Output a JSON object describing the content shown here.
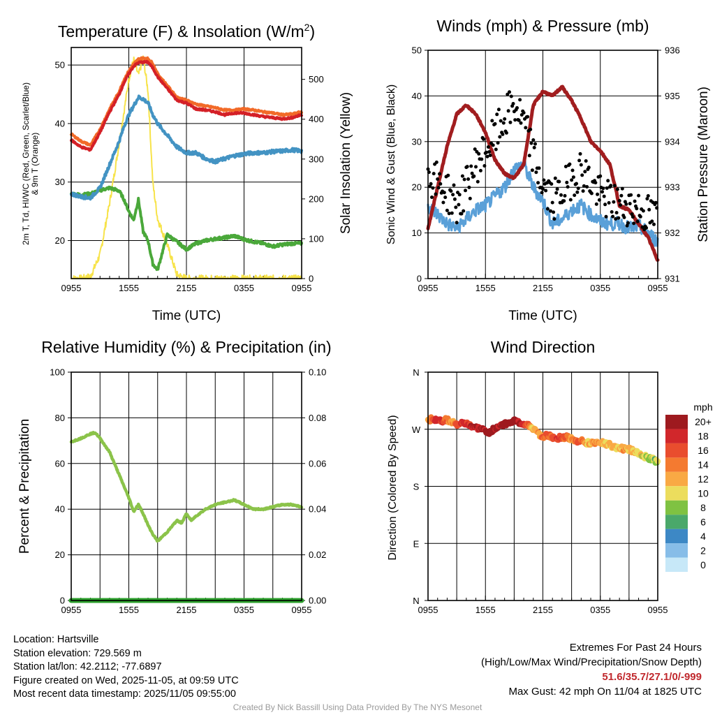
{
  "panels": [
    {
      "id": "temp",
      "title_main": "Temperature (F) & Insolation (W/m",
      "title_sup": "2",
      "title_end": ")",
      "xlabel": "Time (UTC)",
      "ylabel_left_lines": [
        "2m T, Td, HI/WC (Red, Green, Scarlet/Blue)",
        "& 9m T (Orange)"
      ],
      "ylabel_right": "Solar Insolation (Yellow)"
    },
    {
      "id": "wind",
      "title": "Winds (mph) & Pressure (mb)",
      "xlabel": "Time (UTC)",
      "ylabel_left": "Sonic Wind & Gust (Blue, Black)",
      "ylabel_right": "Station Pressure (Maroon)"
    },
    {
      "id": "rh",
      "title": "Relative Humidity (%) & Precipitation (in)",
      "ylabel_left": "Percent & Precipitation"
    },
    {
      "id": "dir",
      "title": "Wind Direction",
      "ylabel_left": "Direction (Colored By Speed)"
    }
  ],
  "colors": {
    "temp": "#d42027",
    "temp9m": "#f26a28",
    "windchill": "#4393c3",
    "dewpoint": "#4aa83a",
    "insolation": "#f7e34a",
    "wind": "#5aa0d8",
    "gust": "#000000",
    "pressure": "#a11d1f",
    "rh": "#8bc34a",
    "precip": "#2ca02c",
    "extremes": "#c0282d"
  },
  "colorbar": {
    "unit": "mph",
    "labels": [
      "20+",
      "18",
      "16",
      "14",
      "12",
      "10",
      "8",
      "6",
      "4",
      "2",
      "0"
    ],
    "colors": [
      "#9e1a1f",
      "#d1272b",
      "#e94d2e",
      "#f47a30",
      "#f9a944",
      "#ecdd5d",
      "#7fc242",
      "#4aa86a",
      "#3d88c5",
      "#87bde8",
      "#c7e8f8"
    ]
  },
  "info": {
    "location": "Location: Hartsville",
    "elevation": "Station elevation: 729.569 m",
    "latlon": "Station lat/lon: 42.2112; -77.6897",
    "created": "Figure created on Wed, 2025-11-05, at 09:59 UTC",
    "recent": "Most recent data timestamp: 2025/11/05 09:55:00",
    "extremes_title": "Extremes For Past 24 Hours",
    "extremes_fields": "(High/Low/Max Wind/Precipitation/Snow Depth)",
    "extremes_values": "51.6/35.7/27.1/0/-999",
    "max_gust": "Max Gust: 42 mph On 11/04 at 1825 UTC",
    "credit": "Created By Nick Bassill Using Data Provided By The NYS Mesonet"
  },
  "chart_data": [
    {
      "id": "temp",
      "type": "line",
      "x_ticks": [
        "0955",
        "1555",
        "2155",
        "0355",
        "0955"
      ],
      "x": [
        0,
        1,
        2,
        3,
        4,
        5,
        5.5,
        6,
        6.5,
        7,
        7.5,
        8,
        8.5,
        9,
        10,
        11,
        12,
        13,
        14,
        15,
        16,
        17,
        18,
        19,
        20,
        21,
        22,
        23,
        24
      ],
      "ylim": [
        13.5,
        53
      ],
      "y_ticks": [
        20,
        30,
        40,
        50
      ],
      "y2lim": [
        0,
        580
      ],
      "y2_ticks": [
        0,
        100,
        200,
        300,
        400,
        500
      ],
      "series": [
        {
          "name": "2m T",
          "color_key": "temp",
          "axis": "left",
          "values": [
            37.2,
            36,
            35.5,
            38.5,
            42,
            45,
            47,
            48.5,
            49.8,
            50.4,
            50.5,
            50.5,
            49.5,
            48,
            46,
            44,
            43.5,
            42.5,
            42.3,
            42,
            41.5,
            41.8,
            41.8,
            41.5,
            41.2,
            41,
            40.8,
            41,
            41.5
          ]
        },
        {
          "name": "9m T",
          "color_key": "temp9m",
          "axis": "left",
          "values": [
            38.2,
            37,
            36.3,
            39,
            42.5,
            45.5,
            47.5,
            49,
            50.2,
            51,
            51.2,
            51.1,
            50.3,
            48.5,
            46.5,
            44.5,
            44,
            43.3,
            43,
            42.7,
            42.3,
            42.3,
            42.5,
            42.3,
            42,
            41.8,
            41.5,
            41.6,
            42
          ]
        },
        {
          "name": "HI/WC",
          "color_key": "windchill",
          "axis": "left",
          "values": [
            28,
            27.5,
            27.3,
            29,
            33,
            37,
            39.5,
            41.5,
            43,
            44.5,
            44.2,
            43.5,
            41.5,
            40,
            38,
            36,
            35,
            35,
            34,
            33.5,
            34,
            34.5,
            34.8,
            35,
            35,
            35.2,
            35.3,
            35.5,
            35.3
          ]
        },
        {
          "name": "Td",
          "color_key": "dewpoint",
          "axis": "left",
          "values": [
            28,
            27.8,
            28,
            28.6,
            29,
            28.5,
            27,
            25,
            23.5,
            27,
            21.5,
            20,
            16,
            15,
            21,
            19.8,
            18.5,
            19.5,
            20,
            20.3,
            20.5,
            20.8,
            20.2,
            19.8,
            19.5,
            19,
            19.3,
            19.5,
            19.5
          ]
        },
        {
          "name": "Insolation",
          "color_key": "insolation",
          "axis": "right",
          "values": [
            0,
            0,
            5,
            60,
            190,
            340,
            420,
            500,
            550,
            510,
            555,
            470,
            240,
            150,
            85,
            10,
            0,
            0,
            0,
            0,
            0,
            0,
            0,
            0,
            0,
            0,
            0,
            0,
            0
          ]
        }
      ]
    },
    {
      "id": "wind",
      "type": "line",
      "x_ticks": [
        "0955",
        "1555",
        "2155",
        "0355",
        "0955"
      ],
      "x": [
        0,
        1,
        2,
        3,
        4,
        5,
        6,
        7,
        8,
        9,
        10,
        11,
        12,
        13,
        14,
        15,
        16,
        17,
        18,
        19,
        20,
        21,
        22,
        23,
        24
      ],
      "ylim": [
        0,
        50
      ],
      "y_ticks": [
        0,
        10,
        20,
        30,
        40,
        50
      ],
      "y2lim": [
        931,
        936
      ],
      "y2_ticks": [
        931,
        932,
        933,
        934,
        935,
        936
      ],
      "series": [
        {
          "name": "Sonic Wind",
          "color_key": "wind",
          "axis": "left",
          "values": [
            16,
            14,
            12,
            11,
            13,
            15,
            16,
            18,
            20,
            24,
            25,
            20,
            17,
            12,
            13,
            15,
            16,
            14,
            12.5,
            12,
            12,
            11,
            11.5,
            10,
            8
          ]
        },
        {
          "name": "Gust",
          "color_key": "gust",
          "axis": "left",
          "style": "points",
          "values": [
            23,
            21,
            19,
            16,
            20,
            25,
            28,
            31,
            35,
            38,
            34,
            27,
            20,
            17,
            19,
            22,
            24,
            21,
            18,
            17,
            16,
            16,
            15,
            14,
            13
          ]
        },
        {
          "name": "Station Pressure",
          "color_key": "pressure",
          "axis": "right",
          "values": [
            932.1,
            933.0,
            933.9,
            934.6,
            934.8,
            934.6,
            934.2,
            933.6,
            933.3,
            933.2,
            933.5,
            934.8,
            935.1,
            935.0,
            935.2,
            934.9,
            934.5,
            934.0,
            933.8,
            933.5,
            932.6,
            932.5,
            932.2,
            931.9,
            931.4
          ]
        }
      ]
    },
    {
      "id": "rh",
      "type": "line",
      "x_ticks": [
        "0955",
        "1555",
        "2155",
        "0355",
        "0955"
      ],
      "x": [
        0,
        1,
        2,
        2.5,
        3,
        4,
        4.5,
        5,
        5.5,
        6,
        6.5,
        7,
        7.5,
        8,
        8.5,
        9,
        10,
        11,
        11.5,
        12,
        12.5,
        13,
        14,
        15,
        16,
        17,
        18,
        19,
        20,
        21,
        22,
        23,
        24
      ],
      "ylim": [
        0,
        100
      ],
      "y_ticks": [
        0,
        20,
        40,
        60,
        80,
        100
      ],
      "y2lim": [
        0,
        0.1
      ],
      "y2_ticks": [
        "0.00",
        "0.02",
        "0.04",
        "0.06",
        "0.08",
        "0.10"
      ],
      "series": [
        {
          "name": "Relative Humidity",
          "color_key": "rh",
          "axis": "left",
          "values": [
            69.5,
            71,
            73,
            73.5,
            71,
            65,
            60,
            55,
            50,
            45,
            39,
            42,
            38,
            33,
            29,
            26,
            30,
            35,
            34,
            38,
            35,
            37,
            40,
            42,
            43,
            44,
            42,
            40,
            40,
            41,
            42,
            42,
            41
          ]
        },
        {
          "name": "Precipitation",
          "color_key": "precip",
          "axis": "right",
          "values": [
            0,
            0,
            0,
            0,
            0,
            0,
            0,
            0,
            0,
            0,
            0,
            0,
            0,
            0,
            0,
            0,
            0,
            0,
            0,
            0,
            0,
            0,
            0,
            0,
            0,
            0,
            0,
            0,
            0,
            0,
            0,
            0,
            0
          ]
        }
      ]
    },
    {
      "id": "dir",
      "type": "scatter",
      "x_ticks": [
        "0955",
        "1555",
        "2155",
        "0355",
        "0955"
      ],
      "y_ticks": [
        "N",
        "E",
        "S",
        "W",
        "N"
      ],
      "ylim": [
        0,
        360
      ],
      "x": [
        0,
        0.5,
        1,
        1.5,
        2,
        2.5,
        3,
        3.5,
        4,
        4.5,
        5,
        5.5,
        6,
        6.5,
        7,
        7.5,
        8,
        8.5,
        9,
        9.5,
        10,
        10.5,
        11,
        11.5,
        12,
        12.5,
        13,
        13.5,
        14,
        14.5,
        15,
        15.5,
        16,
        16.5,
        17,
        17.5,
        18,
        18.5,
        19,
        19.5,
        20,
        20.5,
        21,
        21.5,
        22,
        22.5,
        23,
        23.5,
        24
      ],
      "values": [
        285,
        286,
        285,
        283,
        285,
        282,
        278,
        279,
        278,
        275,
        272,
        270,
        267,
        265,
        272,
        275,
        278,
        282,
        283,
        280,
        278,
        277,
        270,
        262,
        259,
        260,
        258,
        256,
        257,
        258,
        255,
        250,
        252,
        249,
        248,
        249,
        250,
        248,
        245,
        242,
        240,
        239,
        238,
        236,
        233,
        228,
        225,
        222,
        218
      ],
      "speeds": [
        12,
        16,
        18,
        17,
        14,
        12,
        16,
        18,
        17,
        18,
        20,
        19,
        20,
        21,
        20,
        19,
        21,
        22,
        21,
        20,
        18,
        14,
        11,
        13,
        15,
        16,
        15,
        17,
        16,
        15,
        13,
        14,
        15,
        12,
        12,
        13,
        12,
        11,
        12,
        12,
        11,
        12,
        11,
        12,
        11,
        10,
        9,
        8,
        9
      ]
    }
  ]
}
